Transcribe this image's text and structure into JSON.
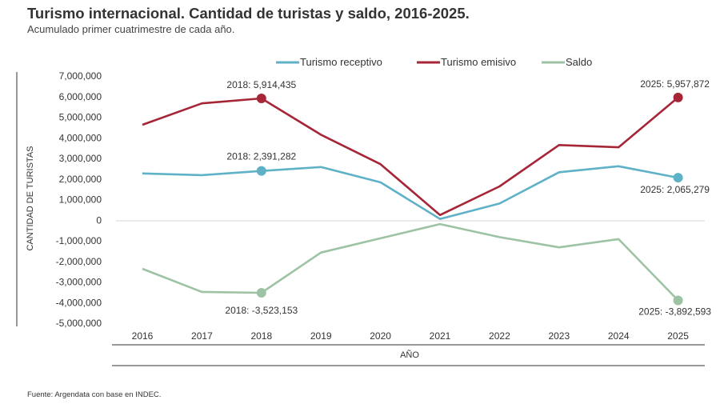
{
  "header": {
    "title": "Turismo internacional. Cantidad de turistas y saldo, 2016-2025.",
    "subtitle": "Acumulado primer cuatrimestre de cada año."
  },
  "footer": {
    "source": "Fuente: Argendata con base en INDEC."
  },
  "chart_data": {
    "type": "line",
    "title": "Turismo internacional. Cantidad de turistas y saldo, 2016-2025.",
    "subtitle": "Acumulado primer cuatrimestre de cada año.",
    "xlabel": "AÑO",
    "ylabel": "CANTIDAD DE TURISTAS",
    "ylim": [
      -5000000,
      7000000
    ],
    "yticks": [
      7000000,
      6000000,
      5000000,
      4000000,
      3000000,
      2000000,
      1000000,
      0,
      -1000000,
      -2000000,
      -3000000,
      -4000000,
      -5000000
    ],
    "ytick_labels": [
      "7,000,000",
      "6,000,000",
      "5,000,000",
      "4,000,000",
      "3,000,000",
      "2,000,000",
      "1,000,000",
      "0",
      "-1,000,000",
      "-2,000,000",
      "-3,000,000",
      "-4,000,000",
      "-5,000,000"
    ],
    "categories": [
      "2016",
      "2017",
      "2018",
      "2019",
      "2020",
      "2021",
      "2022",
      "2023",
      "2024",
      "2025"
    ],
    "legend_position": "top",
    "series": [
      {
        "name": "Turismo receptivo",
        "color": "#5fb1c7",
        "values": [
          2270000,
          2190000,
          2391282,
          2580000,
          1840000,
          60000,
          810000,
          2330000,
          2620000,
          2065279
        ]
      },
      {
        "name": "Turismo emisivo",
        "color": "#a62638",
        "values": [
          4630000,
          5670000,
          5914435,
          4150000,
          2720000,
          250000,
          1640000,
          3650000,
          3540000,
          5957872
        ]
      },
      {
        "name": "Saldo",
        "color": "#9dc3a4",
        "values": [
          -2360000,
          -3480000,
          -3523153,
          -1570000,
          -880000,
          -190000,
          -820000,
          -1320000,
          -920000,
          -3892593
        ]
      }
    ],
    "annotations": [
      {
        "series": 1,
        "index": 2,
        "text": "2018:  5,914,435"
      },
      {
        "series": 0,
        "index": 2,
        "text": "2018:  2,391,282"
      },
      {
        "series": 2,
        "index": 2,
        "text": "2018: -3,523,153"
      },
      {
        "series": 1,
        "index": 9,
        "text": "2025:  5,957,872"
      },
      {
        "series": 0,
        "index": 9,
        "text": "2025: 2,065,279"
      },
      {
        "series": 2,
        "index": 9,
        "text": "2025: -3,892,593"
      }
    ]
  }
}
